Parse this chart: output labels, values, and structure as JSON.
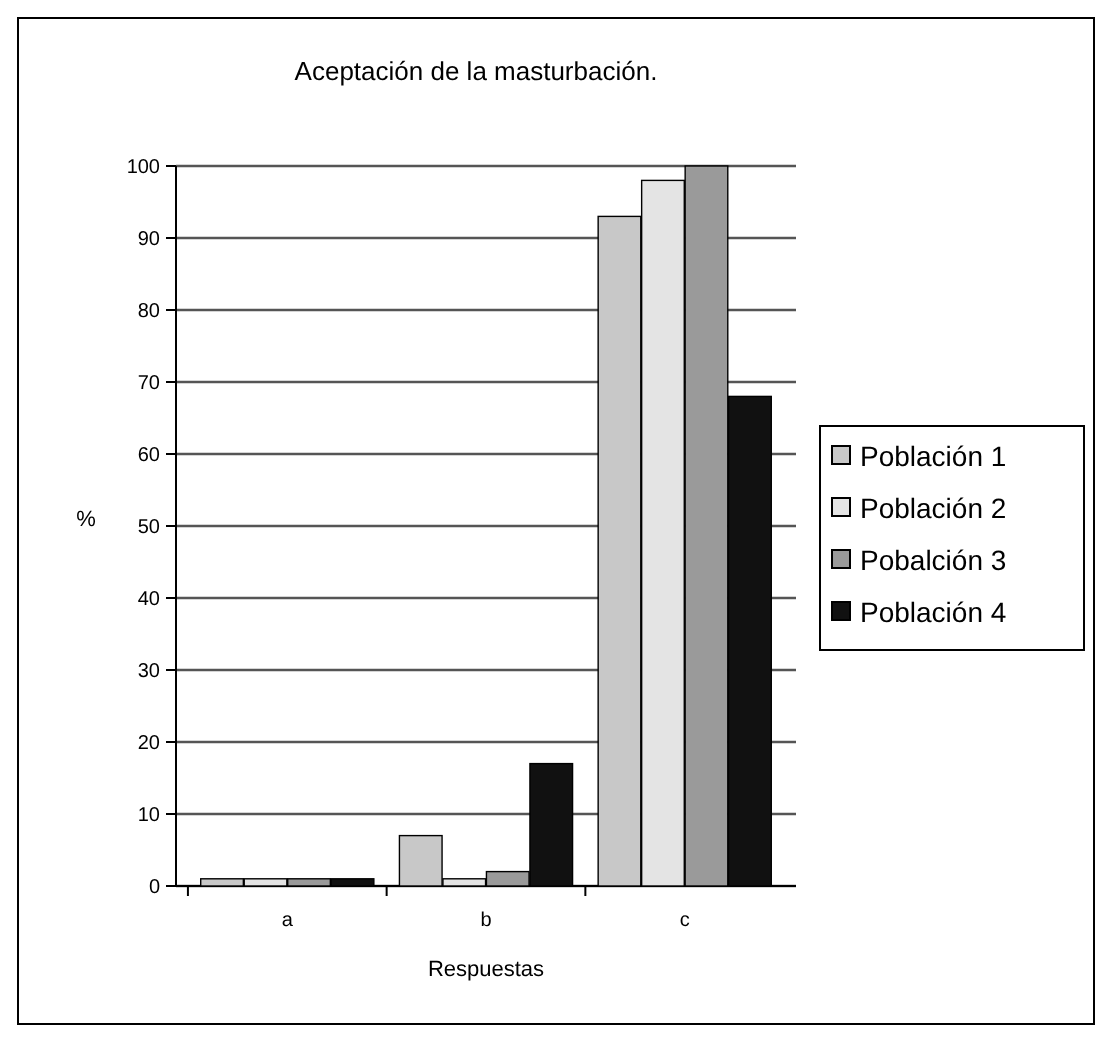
{
  "chart_data": {
    "type": "bar",
    "title": "Aceptación de la masturbación.",
    "xlabel": "Respuestas",
    "ylabel": "%",
    "categories": [
      "a",
      "b",
      "c"
    ],
    "series": [
      {
        "name": "Población 1",
        "color": "#c8c8c8",
        "values": [
          1,
          7,
          93
        ]
      },
      {
        "name": "Población 2",
        "color": "#e4e4e4",
        "values": [
          1,
          1,
          98
        ]
      },
      {
        "name": "Pobalción 3",
        "color": "#9a9a9a",
        "values": [
          1,
          2,
          100
        ]
      },
      {
        "name": "Población 4",
        "color": "#111111",
        "values": [
          1,
          17,
          68
        ]
      }
    ],
    "ylim": [
      0,
      100
    ],
    "yticks": [
      0,
      10,
      20,
      30,
      40,
      50,
      60,
      70,
      80,
      90,
      100
    ],
    "grid": "y",
    "legend": "right"
  }
}
